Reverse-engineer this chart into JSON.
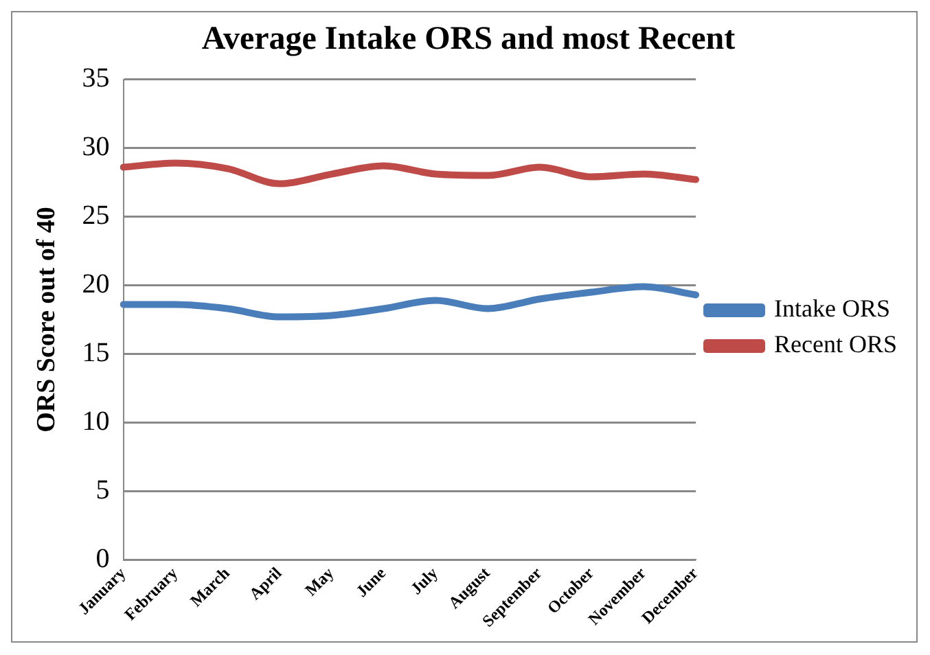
{
  "chart_data": {
    "type": "line",
    "title": "Average Intake ORS and most Recent",
    "ylabel": "ORS Score out of 40",
    "categories": [
      "January",
      "February",
      "March",
      "April",
      "May",
      "June",
      "July",
      "August",
      "September",
      "October",
      "November",
      "December"
    ],
    "series": [
      {
        "name": "Intake ORS",
        "color": "#4a7ebb",
        "values": [
          18.6,
          18.6,
          18.3,
          17.7,
          17.8,
          18.3,
          18.9,
          18.3,
          19.0,
          19.5,
          19.9,
          19.3
        ]
      },
      {
        "name": "Recent ORS",
        "color": "#be4b48",
        "values": [
          28.6,
          28.9,
          28.5,
          27.4,
          28.1,
          28.7,
          28.1,
          28.0,
          28.6,
          27.9,
          28.1,
          27.7
        ]
      }
    ],
    "ylim": [
      0,
      35
    ],
    "yticks": [
      0,
      5,
      10,
      15,
      20,
      25,
      30,
      35
    ],
    "grid": "y",
    "legend": "right",
    "marker": "none",
    "line_style": "solid"
  }
}
